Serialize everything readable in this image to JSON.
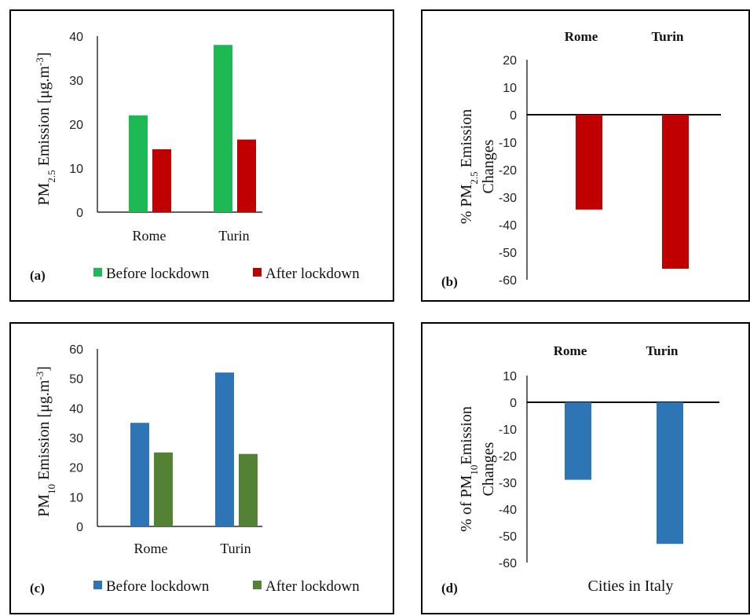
{
  "chart_data": [
    {
      "id": "a",
      "panel_label": "(a)",
      "type": "bar",
      "ylabel_parts": [
        "PM",
        "2.5",
        " Emission [μg.m",
        "-3",
        "]"
      ],
      "categories": [
        "Rome",
        "Turin"
      ],
      "ylim": [
        0,
        40
      ],
      "yticks": [
        0,
        10,
        20,
        30,
        40
      ],
      "series": [
        {
          "name": "Before lockdown",
          "color": "#1db954",
          "values": [
            22,
            38
          ]
        },
        {
          "name": "After lockdown",
          "color": "#c00000",
          "values": [
            14.3,
            16.5
          ]
        }
      ],
      "legend": "bottom"
    },
    {
      "id": "b",
      "panel_label": "(b)",
      "type": "bar",
      "ylabel_line1_parts": [
        "% PM",
        "2.5",
        " Emission"
      ],
      "ylabel_line2": "Changes",
      "categories": [
        "Rome",
        "Turin"
      ],
      "category_labels_position": "top",
      "ylim": [
        -60,
        20
      ],
      "yticks": [
        20,
        10,
        0,
        -10,
        -20,
        -30,
        -40,
        -50,
        -60
      ],
      "series": [
        {
          "color": "#c00000",
          "values": [
            -34.5,
            -56
          ]
        }
      ]
    },
    {
      "id": "c",
      "panel_label": "(c)",
      "type": "bar",
      "ylabel_parts": [
        "PM",
        "10",
        " Emission [μg.m",
        "-3",
        "]"
      ],
      "categories": [
        "Rome",
        "Turin"
      ],
      "ylim": [
        0,
        60
      ],
      "yticks": [
        0,
        10,
        20,
        30,
        40,
        50,
        60
      ],
      "series": [
        {
          "name": "Before lockdown",
          "color": "#2e75b6",
          "values": [
            35,
            52
          ]
        },
        {
          "name": "After lockdown",
          "color": "#548235",
          "values": [
            25,
            24.5
          ]
        }
      ],
      "legend": "bottom"
    },
    {
      "id": "d",
      "panel_label": "(d)",
      "type": "bar",
      "ylabel_line1_parts": [
        "% of PM",
        "10",
        "Emission"
      ],
      "ylabel_line2": "Changes",
      "xlabel": "Cities in Italy",
      "categories": [
        "Rome",
        "Turin"
      ],
      "category_labels_position": "top",
      "ylim": [
        -60,
        10
      ],
      "yticks": [
        10,
        0,
        -10,
        -20,
        -30,
        -40,
        -50,
        -60
      ],
      "series": [
        {
          "color": "#2e75b6",
          "values": [
            -29,
            -53
          ]
        }
      ]
    }
  ]
}
